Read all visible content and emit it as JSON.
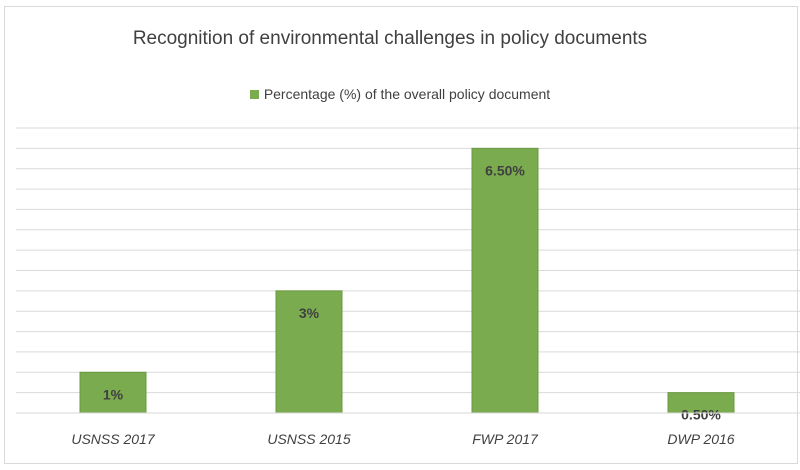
{
  "chart_data": {
    "type": "bar",
    "title": "Recognition of environmental challenges in policy documents",
    "xlabel": "",
    "ylabel": "",
    "categories": [
      "USNSS 2017",
      "USNSS 2015",
      "FWP 2017",
      "DWP 2016"
    ],
    "series": [
      {
        "name": "Percentage (%) of the overall policy document",
        "values": [
          1,
          3,
          6.5,
          0.5
        ],
        "labels": [
          "1%",
          "3%",
          "6.50%",
          "0.50%"
        ]
      }
    ],
    "ylim": [
      0,
      7
    ],
    "grid": true,
    "legend_position": "top",
    "colors": {
      "bar": "#7aab4f",
      "bar_edge": "#6a9a42",
      "gridline": "#d9d9d9",
      "text": "#404040"
    }
  }
}
